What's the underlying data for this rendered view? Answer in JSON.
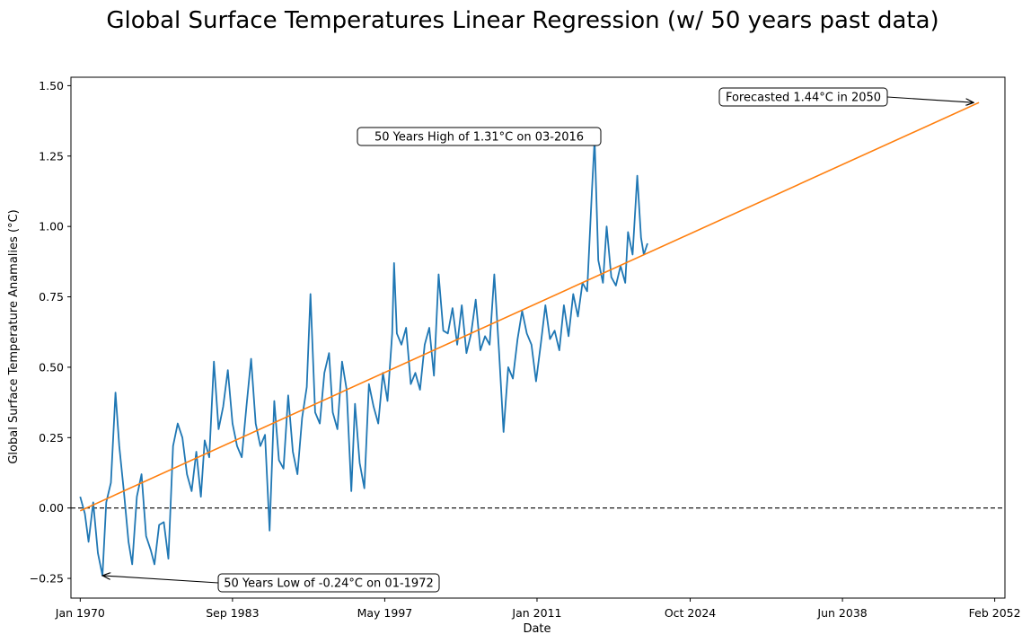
{
  "chart_data": {
    "type": "line",
    "title": "Global Surface Temperatures Linear Regression (w/ 50 years past data)",
    "xlabel": "Date",
    "ylabel": "Global Surface Temperature Anamalies (°C)",
    "x_is_date": true,
    "xlim": [
      "1969-03",
      "2053-01"
    ],
    "ylim": [
      -0.32,
      1.53
    ],
    "x_ticks": [
      {
        "date": "1970-01",
        "label": "Jan 1970"
      },
      {
        "date": "1983-09",
        "label": "Sep 1983"
      },
      {
        "date": "1997-05",
        "label": "May 1997"
      },
      {
        "date": "2011-01",
        "label": "Jan 2011"
      },
      {
        "date": "2024-10",
        "label": "Oct 2024"
      },
      {
        "date": "2038-06",
        "label": "Jun 2038"
      },
      {
        "date": "2052-02",
        "label": "Feb 2052"
      }
    ],
    "y_ticks": [
      {
        "value": -0.25,
        "label": "−0.25"
      },
      {
        "value": 0.0,
        "label": "0.00"
      },
      {
        "value": 0.25,
        "label": "0.25"
      },
      {
        "value": 0.5,
        "label": "0.50"
      },
      {
        "value": 0.75,
        "label": "0.75"
      },
      {
        "value": 1.0,
        "label": "1.00"
      },
      {
        "value": 1.25,
        "label": "1.25"
      },
      {
        "value": 1.5,
        "label": "1.50"
      }
    ],
    "series": [
      {
        "color": "#1f77b4",
        "points": [
          [
            "1970-01",
            0.04
          ],
          [
            "1970-06",
            -0.02
          ],
          [
            "1970-10",
            -0.12
          ],
          [
            "1971-03",
            0.02
          ],
          [
            "1971-08",
            -0.16
          ],
          [
            "1972-01",
            -0.24
          ],
          [
            "1972-05",
            0.02
          ],
          [
            "1972-10",
            0.09
          ],
          [
            "1973-03",
            0.41
          ],
          [
            "1973-07",
            0.22
          ],
          [
            "1973-12",
            0.06
          ],
          [
            "1974-05",
            -0.12
          ],
          [
            "1974-09",
            -0.2
          ],
          [
            "1975-02",
            0.04
          ],
          [
            "1975-07",
            0.12
          ],
          [
            "1975-12",
            -0.1
          ],
          [
            "1976-05",
            -0.15
          ],
          [
            "1976-09",
            -0.2
          ],
          [
            "1977-02",
            -0.06
          ],
          [
            "1977-07",
            -0.05
          ],
          [
            "1977-12",
            -0.18
          ],
          [
            "1978-05",
            0.22
          ],
          [
            "1978-10",
            0.3
          ],
          [
            "1979-03",
            0.25
          ],
          [
            "1979-08",
            0.12
          ],
          [
            "1980-01",
            0.06
          ],
          [
            "1980-06",
            0.2
          ],
          [
            "1980-11",
            0.04
          ],
          [
            "1981-03",
            0.24
          ],
          [
            "1981-08",
            0.18
          ],
          [
            "1982-01",
            0.52
          ],
          [
            "1982-06",
            0.28
          ],
          [
            "1982-11",
            0.36
          ],
          [
            "1983-04",
            0.49
          ],
          [
            "1983-09",
            0.3
          ],
          [
            "1984-02",
            0.22
          ],
          [
            "1984-07",
            0.18
          ],
          [
            "1984-12",
            0.36
          ],
          [
            "1985-05",
            0.53
          ],
          [
            "1985-10",
            0.3
          ],
          [
            "1986-03",
            0.22
          ],
          [
            "1986-08",
            0.26
          ],
          [
            "1987-01",
            -0.08
          ],
          [
            "1987-06",
            0.38
          ],
          [
            "1987-11",
            0.17
          ],
          [
            "1988-04",
            0.14
          ],
          [
            "1988-09",
            0.4
          ],
          [
            "1989-02",
            0.2
          ],
          [
            "1989-07",
            0.12
          ],
          [
            "1989-12",
            0.32
          ],
          [
            "1990-05",
            0.43
          ],
          [
            "1990-09",
            0.76
          ],
          [
            "1991-02",
            0.34
          ],
          [
            "1991-07",
            0.3
          ],
          [
            "1991-12",
            0.48
          ],
          [
            "1992-05",
            0.55
          ],
          [
            "1992-09",
            0.34
          ],
          [
            "1993-02",
            0.28
          ],
          [
            "1993-07",
            0.52
          ],
          [
            "1993-12",
            0.42
          ],
          [
            "1994-05",
            0.06
          ],
          [
            "1994-09",
            0.37
          ],
          [
            "1995-02",
            0.16
          ],
          [
            "1995-07",
            0.07
          ],
          [
            "1995-12",
            0.44
          ],
          [
            "1996-05",
            0.36
          ],
          [
            "1996-10",
            0.3
          ],
          [
            "1997-03",
            0.48
          ],
          [
            "1997-08",
            0.38
          ],
          [
            "1998-01",
            0.62
          ],
          [
            "1998-03",
            0.87
          ],
          [
            "1998-06",
            0.62
          ],
          [
            "1998-11",
            0.58
          ],
          [
            "1999-04",
            0.64
          ],
          [
            "1999-09",
            0.44
          ],
          [
            "2000-02",
            0.48
          ],
          [
            "2000-07",
            0.42
          ],
          [
            "2000-12",
            0.58
          ],
          [
            "2001-05",
            0.64
          ],
          [
            "2001-10",
            0.47
          ],
          [
            "2002-03",
            0.83
          ],
          [
            "2002-08",
            0.63
          ],
          [
            "2003-01",
            0.62
          ],
          [
            "2003-06",
            0.71
          ],
          [
            "2003-11",
            0.58
          ],
          [
            "2004-04",
            0.72
          ],
          [
            "2004-09",
            0.55
          ],
          [
            "2005-02",
            0.62
          ],
          [
            "2005-07",
            0.74
          ],
          [
            "2005-12",
            0.56
          ],
          [
            "2006-05",
            0.61
          ],
          [
            "2006-10",
            0.58
          ],
          [
            "2007-03",
            0.83
          ],
          [
            "2007-08",
            0.56
          ],
          [
            "2008-01",
            0.27
          ],
          [
            "2008-06",
            0.5
          ],
          [
            "2008-11",
            0.46
          ],
          [
            "2009-04",
            0.6
          ],
          [
            "2009-09",
            0.7
          ],
          [
            "2010-02",
            0.62
          ],
          [
            "2010-07",
            0.58
          ],
          [
            "2010-12",
            0.45
          ],
          [
            "2011-05",
            0.58
          ],
          [
            "2011-10",
            0.72
          ],
          [
            "2012-03",
            0.6
          ],
          [
            "2012-08",
            0.63
          ],
          [
            "2013-01",
            0.56
          ],
          [
            "2013-06",
            0.72
          ],
          [
            "2013-11",
            0.61
          ],
          [
            "2014-04",
            0.76
          ],
          [
            "2014-09",
            0.68
          ],
          [
            "2015-02",
            0.8
          ],
          [
            "2015-07",
            0.77
          ],
          [
            "2015-12",
            1.12
          ],
          [
            "2016-03",
            1.31
          ],
          [
            "2016-07",
            0.88
          ],
          [
            "2016-12",
            0.8
          ],
          [
            "2017-04",
            1.0
          ],
          [
            "2017-09",
            0.82
          ],
          [
            "2018-02",
            0.79
          ],
          [
            "2018-07",
            0.86
          ],
          [
            "2018-12",
            0.8
          ],
          [
            "2019-03",
            0.98
          ],
          [
            "2019-08",
            0.9
          ],
          [
            "2020-01",
            1.18
          ],
          [
            "2020-05",
            0.96
          ],
          [
            "2020-08",
            0.9
          ],
          [
            "2020-12",
            0.94
          ]
        ]
      },
      {
        "color": "#ff7f0e",
        "points": [
          [
            "1970-01",
            -0.01
          ],
          [
            "2050-09",
            1.44
          ]
        ]
      }
    ],
    "reference_line": {
      "y": 0.0,
      "style": "dashed",
      "color": "#000000"
    },
    "annotations": [
      {
        "text": "50 Years High of 1.31°C on 03-2016",
        "target_date": "2016-03",
        "target_value": 1.31
      },
      {
        "text": "50 Years Low of -0.24°C on 01-1972",
        "target_date": "1972-01",
        "target_value": -0.24
      },
      {
        "text": "Forecasted 1.44°C in 2050",
        "target_date": "2050-09",
        "target_value": 1.44
      }
    ],
    "grid": false
  }
}
